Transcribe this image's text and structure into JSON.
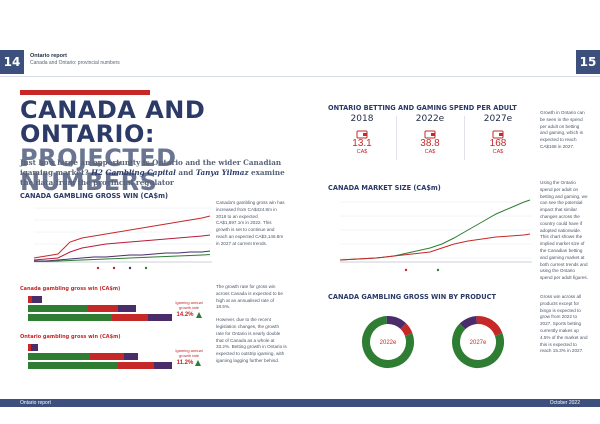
{
  "header": {
    "page_left": "14",
    "page_right": "15",
    "title": "Ontario report",
    "subtitle": "Canada and Ontario: provincial numbers"
  },
  "left": {
    "title_line1": "CANADA AND ONTARIO:",
    "title_line2": "PROJECTED NUMBERS",
    "intro_a": "Just how large an opportunity is Ontario and the wider Canadian igaming market? ",
    "intro_author1": "H2 Gambling Capital",
    "intro_and": " and ",
    "intro_author2": "Tanya Yilmaz",
    "intro_b": " examine the data from the provincial regulator",
    "gross_win_title": "CANADA GAMBLING GROSS WIN (CA$m)",
    "gross_win_note": "Canada's gambling gross win has increased from CA$424.8m in 2018 to an expected CA$1,897.1m in 2022. This growth is set to continue and reach an expected CA$3,146.8m in 2027 at current trends.",
    "canada_bar_title": "Canada gambling gross win (CA$m)",
    "ontario_bar_title": "Ontario gambling gross win (CA$m)",
    "canada_cagr_label": "Igaming annual growth rate",
    "canada_cagr": "14.2%",
    "ontario_cagr_label": "Igaming annual growth rate",
    "ontario_cagr": "11.2%",
    "growth_note_a": "The growth rate for gross win across Canada is expected to be high at an annualised rate of 18.5%.",
    "growth_note_b": "However, due to the recent legislation changes, the growth rate for Ontario is nearly double that of Canada as a whole at 33.2%. Betting growth in Ontario is expected to outstrip igaming, with igaming lagging further behind."
  },
  "right": {
    "spend_title": "ONTARIO BETTING AND GAMING SPEND PER ADULT",
    "spend": [
      {
        "year": "2018",
        "value": "13.1",
        "currency": "CA$"
      },
      {
        "year": "2022e",
        "value": "38.8",
        "currency": "CA$"
      },
      {
        "year": "2027e",
        "value": "168",
        "currency": "CA$"
      }
    ],
    "spend_note": "Growth in Ontario can be seen in the spend per adult on betting and gaming, which is expected to reach CA$168 in 2027.",
    "market_title": "CANADA MARKET SIZE (CA$m)",
    "market_note": "Using the Ontario spend per adult on betting and gaming, we can see the potential impact that similar changes across the country could have if adopted nationwide. This chart shows the implied market size of the Canadian betting and gaming market at both current trends and using the Ontario spend per adult figures.",
    "product_title": "CANADA GAMBLING GROSS WIN BY PRODUCT",
    "product_note": "Gross win across all products except for bingo is expected to grow from 2022 to 2027. Sports betting currently makes up 4.5% of the market and this is expected to reach 15.3% in 2027.",
    "donut1_label": "2022e",
    "donut2_label": "2027e"
  },
  "footer": {
    "left": "Ontario report",
    "right": "October 2022"
  },
  "colors": {
    "navy": "#2b3a67",
    "red": "#c62828",
    "green": "#2e7d32",
    "purple": "#4a2c6b"
  }
}
